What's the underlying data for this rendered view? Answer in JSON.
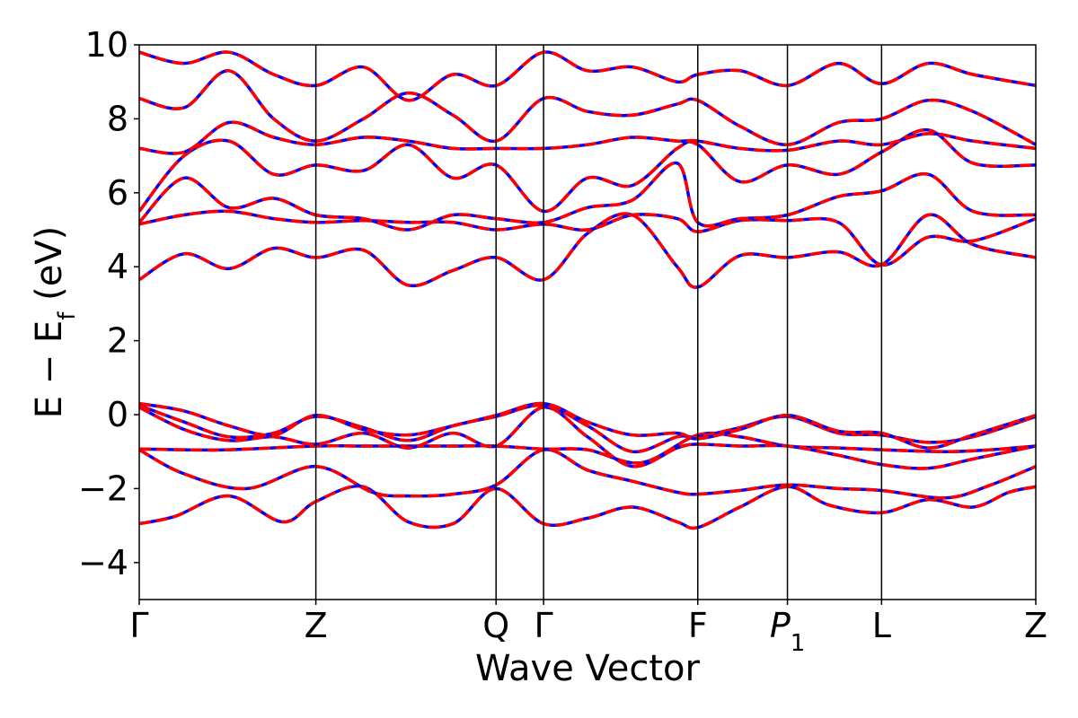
{
  "chart_data": {
    "type": "line",
    "xlabel": "Wave Vector",
    "ylabel": "E − E_f (eV)",
    "ylabel_parts": {
      "pre": "E − E",
      "sub": "f",
      "post": " (eV)"
    },
    "ylim": [
      -5,
      10
    ],
    "xlim": [
      0,
      1
    ],
    "yticks": [
      -4,
      -2,
      0,
      2,
      4,
      6,
      8,
      10
    ],
    "ytick_labels": [
      "−4",
      "−2",
      "0",
      "2",
      "4",
      "6",
      "8",
      "10"
    ],
    "high_symmetry_points": [
      {
        "label": "Γ",
        "x": 0.0
      },
      {
        "label": "Z",
        "x": 0.197
      },
      {
        "label": "Q",
        "x": 0.398
      },
      {
        "label": "Γ",
        "x": 0.451
      },
      {
        "label": "F",
        "x": 0.623
      },
      {
        "label": "P",
        "sub": "1",
        "italic": true,
        "x": 0.723
      },
      {
        "label": "L",
        "x": 0.828
      },
      {
        "label": "Z",
        "x": 1.0
      }
    ],
    "legend": "none",
    "grid": false,
    "series_styles": [
      {
        "color": "#0000ff",
        "dash": "solid"
      },
      {
        "color": "#ff0000",
        "dash": "dashed"
      }
    ],
    "bands": [
      {
        "x": [
          0,
          0.04,
          0.1,
          0.16,
          0.197,
          0.25,
          0.3,
          0.35,
          0.398,
          0.451,
          0.5,
          0.55,
          0.6,
          0.623,
          0.67,
          0.723,
          0.77,
          0.828,
          0.88,
          0.93,
          0.97,
          1.0
        ],
        "y": [
          -2.95,
          -2.75,
          -2.2,
          -2.9,
          -2.35,
          -1.95,
          -2.9,
          -2.95,
          -2.0,
          -2.95,
          -2.8,
          -2.5,
          -2.9,
          -3.05,
          -2.5,
          -1.95,
          -2.45,
          -2.65,
          -2.3,
          -2.5,
          -2.1,
          -1.95
        ]
      },
      {
        "x": [
          0,
          0.05,
          0.12,
          0.197,
          0.26,
          0.3,
          0.35,
          0.398,
          0.451,
          0.5,
          0.55,
          0.6,
          0.623,
          0.67,
          0.723,
          0.78,
          0.828,
          0.9,
          0.95,
          1.0
        ],
        "y": [
          -0.95,
          -1.6,
          -2.0,
          -1.4,
          -2.1,
          -2.2,
          -2.15,
          -1.9,
          -0.95,
          -1.5,
          -1.8,
          -2.1,
          -2.15,
          -2.05,
          -1.9,
          -2.0,
          -2.05,
          -2.25,
          -1.9,
          -1.4
        ]
      },
      {
        "x": [
          0,
          0.05,
          0.1,
          0.197,
          0.25,
          0.3,
          0.35,
          0.398,
          0.451,
          0.5,
          0.56,
          0.623,
          0.67,
          0.723,
          0.78,
          0.828,
          0.9,
          0.95,
          1.0
        ],
        "y": [
          -0.93,
          -0.95,
          -0.95,
          -0.85,
          -0.85,
          -0.85,
          -0.85,
          -0.85,
          -0.93,
          -0.95,
          -1.3,
          -0.55,
          -0.6,
          -0.85,
          -0.9,
          -0.95,
          -1.0,
          -0.95,
          -0.85
        ]
      },
      {
        "x": [
          0,
          0.05,
          0.1,
          0.15,
          0.197,
          0.25,
          0.3,
          0.35,
          0.398,
          0.451,
          0.5,
          0.55,
          0.6,
          0.623,
          0.67,
          0.723,
          0.78,
          0.828,
          0.88,
          0.93,
          1.0
        ],
        "y": [
          0.2,
          -0.4,
          -0.7,
          -0.6,
          -0.8,
          -0.5,
          -0.9,
          -0.5,
          -0.85,
          0.2,
          -0.6,
          -1.4,
          -0.9,
          -0.8,
          -0.85,
          -0.85,
          -1.1,
          -1.35,
          -1.45,
          -1.2,
          -0.85
        ]
      },
      {
        "x": [
          0,
          0.05,
          0.1,
          0.15,
          0.197,
          0.25,
          0.3,
          0.35,
          0.398,
          0.451,
          0.5,
          0.55,
          0.6,
          0.623,
          0.67,
          0.723,
          0.78,
          0.828,
          0.88,
          0.93,
          1.0
        ],
        "y": [
          0.25,
          -0.2,
          -0.6,
          -0.5,
          -0.05,
          -0.35,
          -0.7,
          -0.3,
          -0.05,
          0.25,
          -0.3,
          -1.0,
          -0.6,
          -0.6,
          -0.35,
          -0.05,
          -0.5,
          -0.55,
          -0.75,
          -0.6,
          -0.05
        ]
      },
      {
        "x": [
          0,
          0.05,
          0.1,
          0.15,
          0.197,
          0.25,
          0.3,
          0.35,
          0.398,
          0.451,
          0.5,
          0.55,
          0.6,
          0.623,
          0.67,
          0.723,
          0.78,
          0.828,
          0.88,
          0.93,
          1.0
        ],
        "y": [
          0.3,
          0.1,
          -0.3,
          -0.55,
          -0.02,
          -0.4,
          -0.55,
          -0.3,
          -0.02,
          0.3,
          -0.2,
          -0.55,
          -0.5,
          -0.65,
          -0.4,
          -0.02,
          -0.45,
          -0.5,
          -0.9,
          -0.55,
          -0.02
        ]
      },
      {
        "x": [
          0,
          0.05,
          0.1,
          0.15,
          0.197,
          0.25,
          0.3,
          0.35,
          0.398,
          0.451,
          0.5,
          0.55,
          0.6,
          0.623,
          0.67,
          0.723,
          0.78,
          0.828,
          0.88,
          0.93,
          1.0
        ],
        "y": [
          3.65,
          4.35,
          3.95,
          4.5,
          4.25,
          4.45,
          3.5,
          3.9,
          4.25,
          3.65,
          4.9,
          5.4,
          4.0,
          3.45,
          4.3,
          4.25,
          4.4,
          4.05,
          5.4,
          4.6,
          4.25
        ]
      },
      {
        "x": [
          0,
          0.05,
          0.1,
          0.15,
          0.197,
          0.25,
          0.3,
          0.35,
          0.398,
          0.451,
          0.5,
          0.55,
          0.6,
          0.623,
          0.67,
          0.723,
          0.78,
          0.828,
          0.88,
          0.93,
          1.0
        ],
        "y": [
          5.15,
          5.4,
          5.5,
          5.3,
          5.2,
          5.25,
          5.2,
          5.2,
          5.0,
          5.15,
          5.0,
          5.4,
          5.3,
          4.95,
          5.25,
          5.25,
          5.2,
          4.05,
          4.8,
          4.7,
          5.3
        ]
      },
      {
        "x": [
          0,
          0.05,
          0.1,
          0.15,
          0.197,
          0.25,
          0.3,
          0.35,
          0.398,
          0.451,
          0.5,
          0.55,
          0.6,
          0.623,
          0.67,
          0.723,
          0.78,
          0.828,
          0.88,
          0.93,
          1.0
        ],
        "y": [
          5.2,
          6.4,
          5.6,
          5.85,
          5.4,
          5.3,
          5.0,
          5.4,
          5.3,
          5.2,
          5.6,
          5.8,
          6.8,
          5.2,
          5.3,
          5.4,
          5.9,
          6.05,
          6.5,
          5.5,
          5.4
        ]
      },
      {
        "x": [
          0,
          0.05,
          0.1,
          0.15,
          0.197,
          0.25,
          0.3,
          0.35,
          0.398,
          0.451,
          0.5,
          0.55,
          0.6,
          0.623,
          0.67,
          0.723,
          0.78,
          0.828,
          0.88,
          0.93,
          1.0
        ],
        "y": [
          5.5,
          7.0,
          7.4,
          6.5,
          6.75,
          6.6,
          7.3,
          6.4,
          6.75,
          5.5,
          6.4,
          6.2,
          7.2,
          7.3,
          6.3,
          6.75,
          6.5,
          7.1,
          7.7,
          6.8,
          6.75
        ]
      },
      {
        "x": [
          0,
          0.05,
          0.1,
          0.15,
          0.197,
          0.25,
          0.3,
          0.35,
          0.398,
          0.451,
          0.5,
          0.55,
          0.6,
          0.623,
          0.67,
          0.723,
          0.78,
          0.828,
          0.88,
          0.93,
          1.0
        ],
        "y": [
          7.2,
          7.1,
          7.9,
          7.5,
          7.3,
          7.5,
          7.4,
          7.2,
          7.2,
          7.2,
          7.3,
          7.5,
          7.4,
          7.4,
          7.2,
          7.15,
          7.4,
          7.3,
          7.6,
          7.4,
          7.2
        ]
      },
      {
        "x": [
          0,
          0.05,
          0.1,
          0.15,
          0.197,
          0.25,
          0.3,
          0.35,
          0.398,
          0.451,
          0.5,
          0.55,
          0.6,
          0.623,
          0.67,
          0.723,
          0.78,
          0.828,
          0.88,
          0.93,
          1.0
        ],
        "y": [
          8.55,
          8.3,
          9.3,
          8.0,
          7.4,
          8.0,
          8.7,
          8.1,
          7.4,
          8.55,
          8.2,
          8.1,
          8.4,
          8.5,
          7.8,
          7.3,
          7.9,
          8.0,
          8.5,
          8.2,
          7.3
        ]
      },
      {
        "x": [
          0,
          0.05,
          0.1,
          0.15,
          0.197,
          0.25,
          0.3,
          0.35,
          0.398,
          0.451,
          0.5,
          0.55,
          0.6,
          0.623,
          0.67,
          0.723,
          0.78,
          0.828,
          0.88,
          0.93,
          1.0
        ],
        "y": [
          9.8,
          9.5,
          9.8,
          9.2,
          8.9,
          9.4,
          8.5,
          9.2,
          8.9,
          9.8,
          9.3,
          9.4,
          9.0,
          9.2,
          9.3,
          8.9,
          9.5,
          8.95,
          9.5,
          9.2,
          8.9
        ]
      }
    ]
  }
}
